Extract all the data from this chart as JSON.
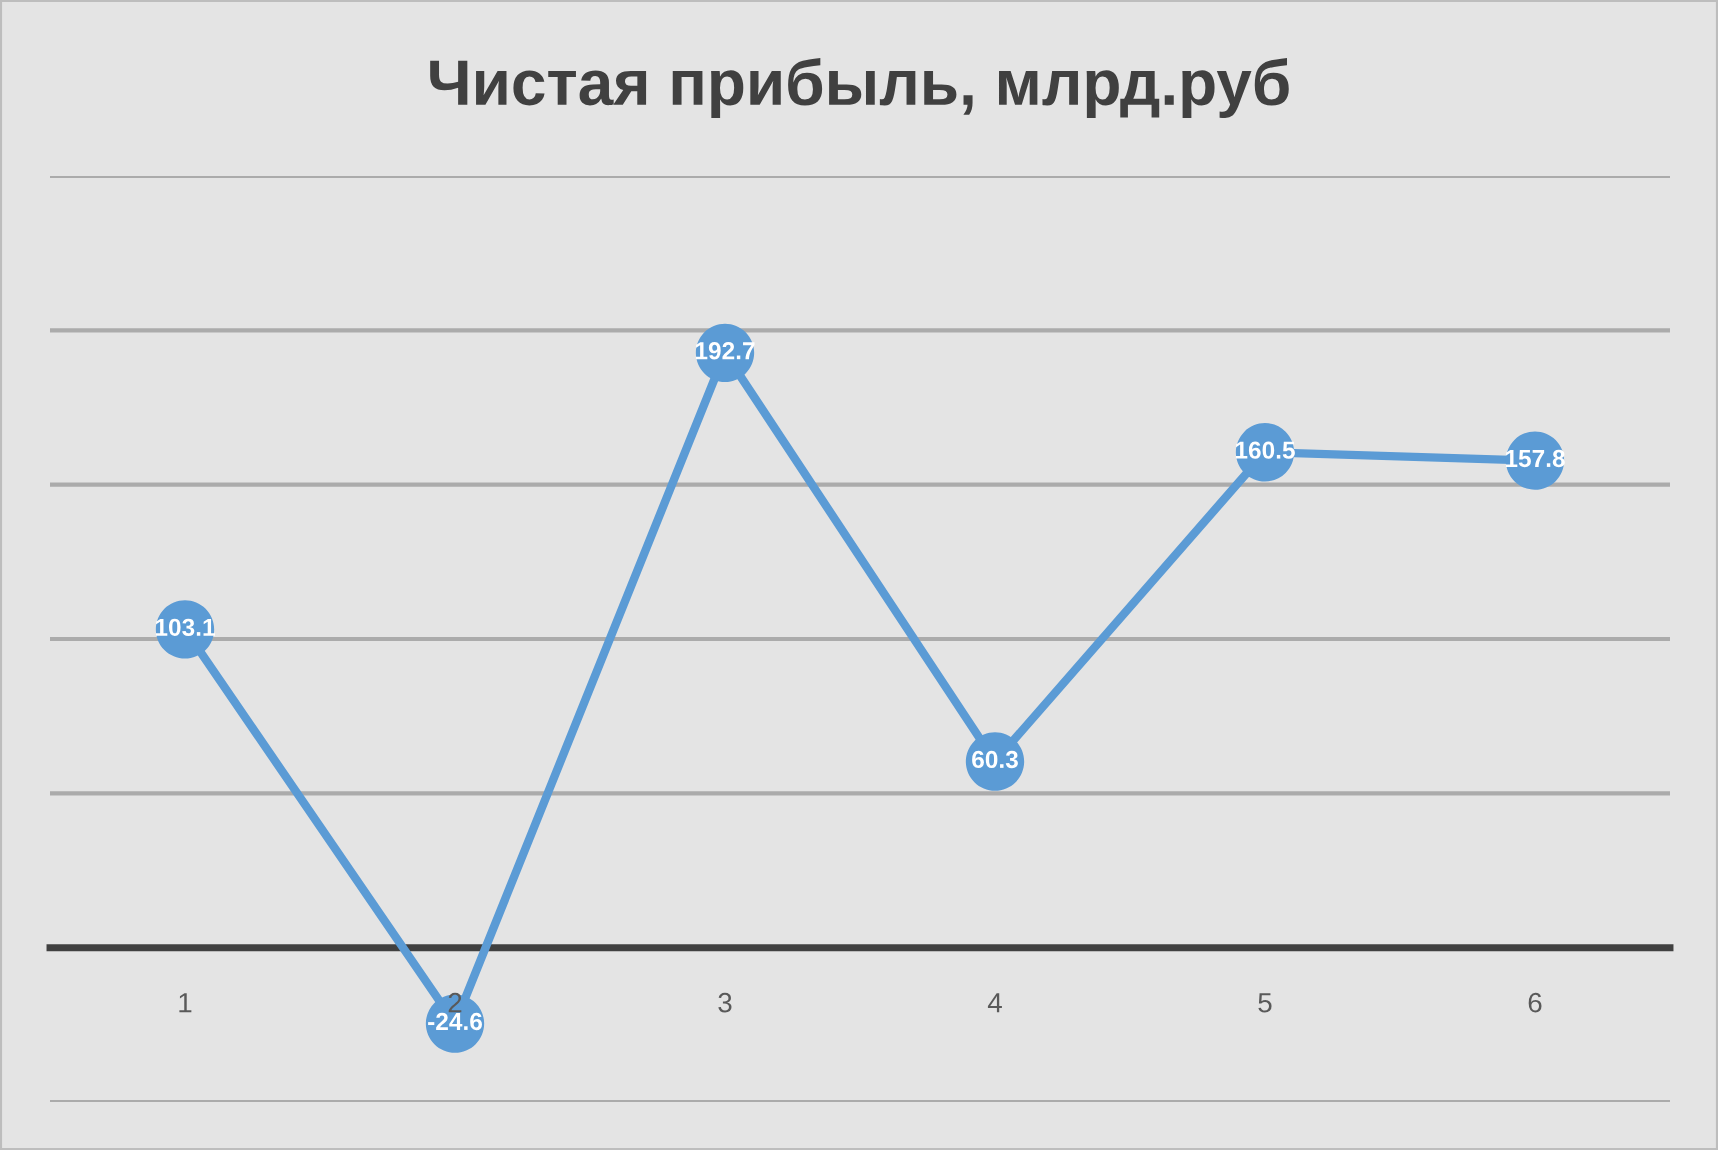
{
  "chart_data": {
    "type": "line",
    "title": "Чистая прибыль, млрд.руб",
    "categories": [
      "1",
      "2",
      "3",
      "4",
      "5",
      "6"
    ],
    "series": [
      {
        "color": "#5b9bd5",
        "values": [
          103.1,
          -24.6,
          192.7,
          60.3,
          160.5,
          157.8
        ]
      }
    ],
    "grid": "y",
    "marker": "circle",
    "line_style": "solid",
    "data_labels": true,
    "tick_labels": "x"
  }
}
